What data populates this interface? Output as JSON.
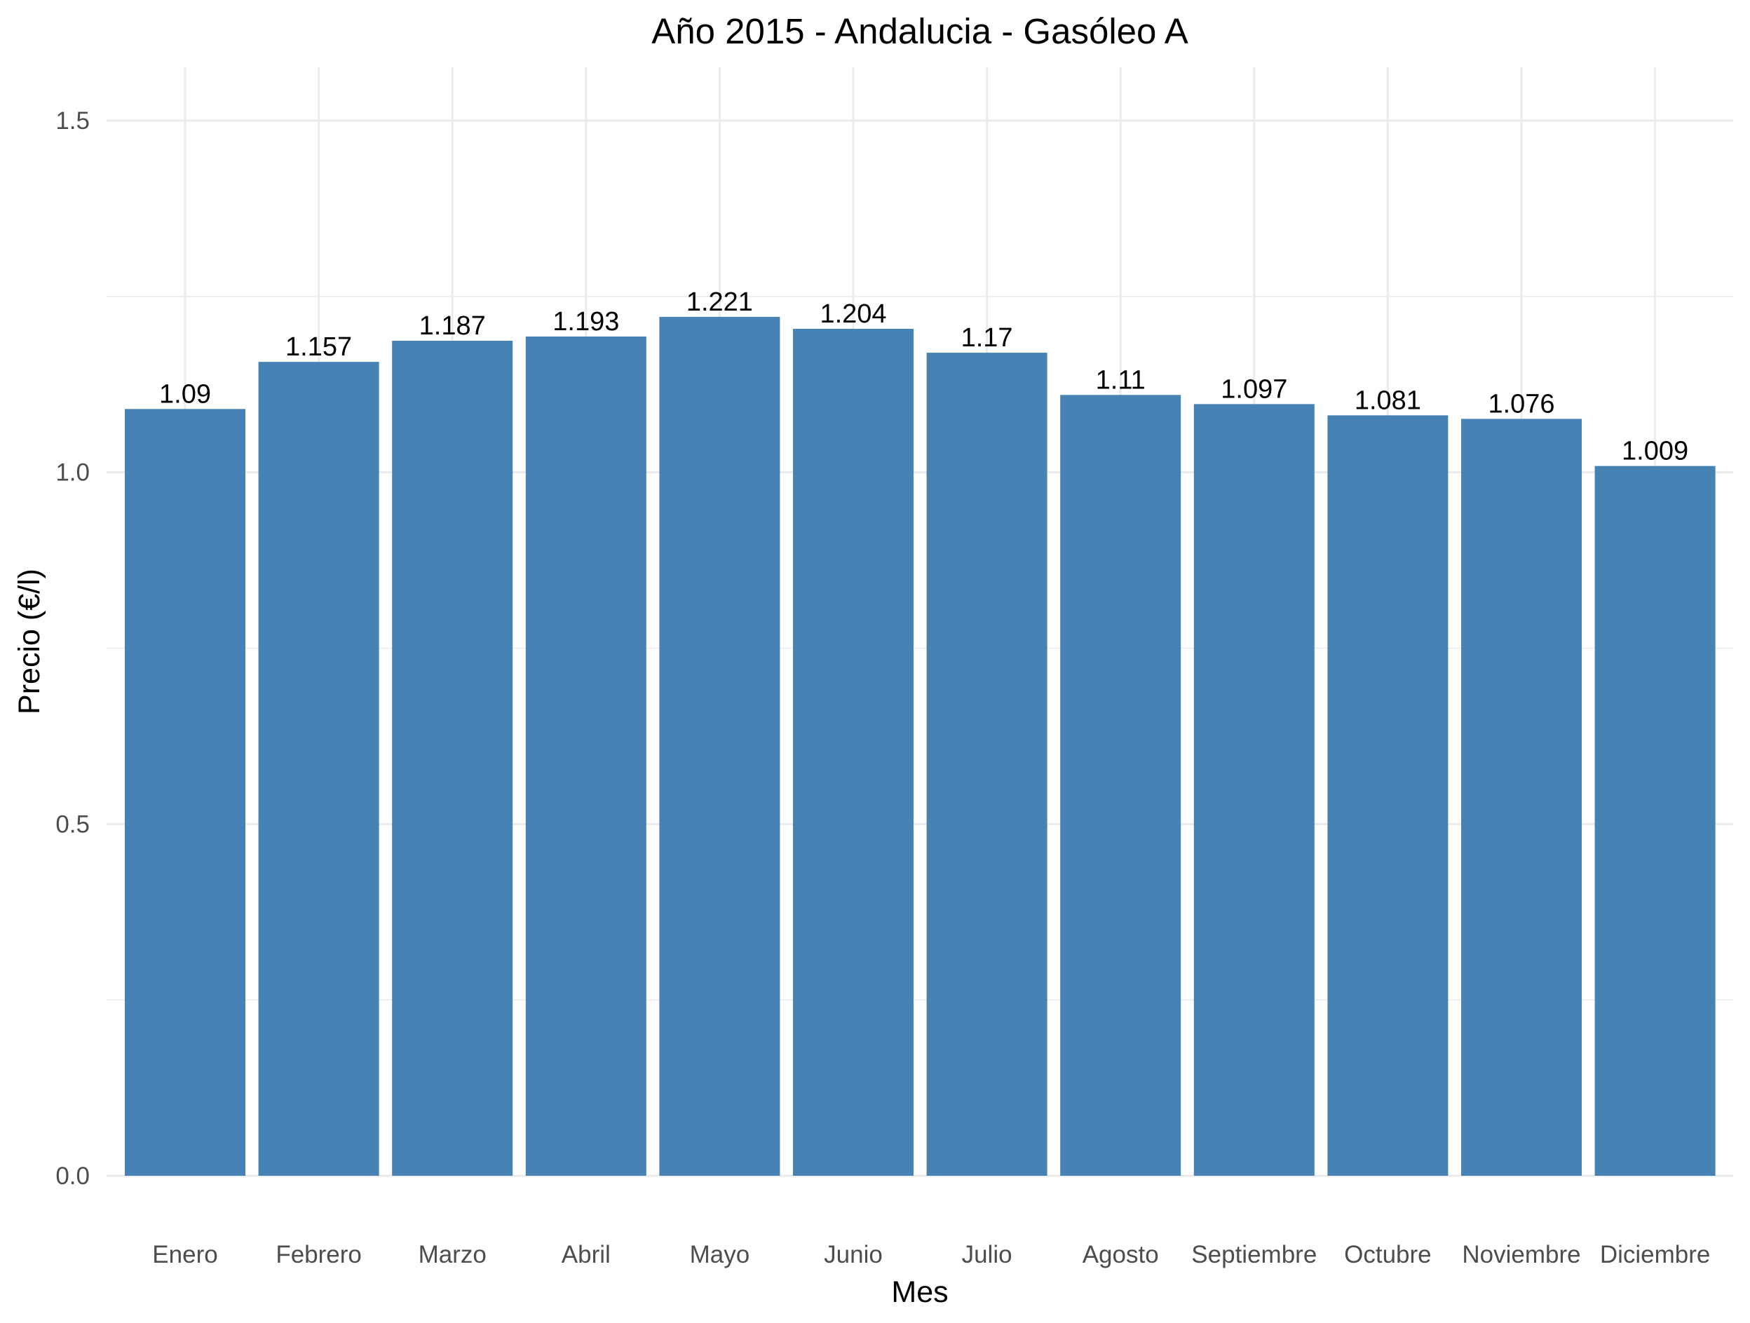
{
  "chart_data": {
    "type": "bar",
    "title": "Año 2015 - Andalucia - Gasóleo A",
    "xlabel": "Mes",
    "ylabel": "Precio (€/l)",
    "categories": [
      "Enero",
      "Febrero",
      "Marzo",
      "Abril",
      "Mayo",
      "Junio",
      "Julio",
      "Agosto",
      "Septiembre",
      "Octubre",
      "Noviembre",
      "Diciembre"
    ],
    "values": [
      1.09,
      1.157,
      1.187,
      1.193,
      1.221,
      1.204,
      1.17,
      1.11,
      1.097,
      1.081,
      1.076,
      1.009
    ],
    "value_labels": [
      "1.09",
      "1.157",
      "1.187",
      "1.193",
      "1.221",
      "1.204",
      "1.17",
      "1.11",
      "1.097",
      "1.081",
      "1.076",
      "1.009"
    ],
    "ylim": [
      0,
      1.5
    ],
    "y_ticks": [
      0,
      0.5,
      1.0,
      1.5
    ],
    "y_tick_labels": [
      "0.0",
      "0.5",
      "1.0",
      "1.5"
    ],
    "y_minor_ticks": [
      0.25,
      0.75,
      1.25
    ],
    "grid": true,
    "bar_color": "#4682b4",
    "background": "#ffffff"
  }
}
